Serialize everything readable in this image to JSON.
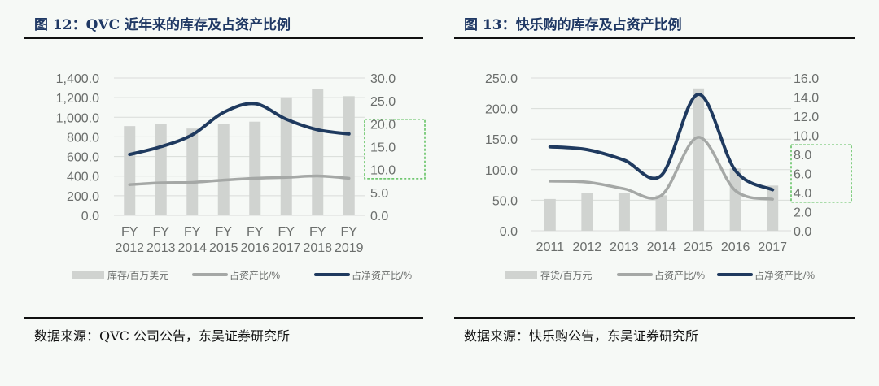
{
  "left": {
    "title": "图 12：QVC 近年来的库存及占资产比例",
    "source": "数据来源：QVC 公司公告，东吴证券研究所"
  },
  "right": {
    "title": "图 13：快乐购的库存及占资产比例",
    "source": "数据来源：快乐购公告，东吴证券研究所"
  },
  "colors": {
    "bar": "#d0d3d0",
    "asset_line": "#a5a8a6",
    "net_asset_line": "#1f3a5f",
    "title": "#1f3864",
    "highlight_box": "#5cc05c"
  },
  "chart_data": [
    {
      "type": "bar+line",
      "categories": [
        "FY\n2012",
        "FY\n2013",
        "FY\n2014",
        "FY\n2015",
        "FY\n2016",
        "FY\n2017",
        "FY\n2018",
        "FY\n2019"
      ],
      "ylim": [
        0,
        1400
      ],
      "y_ticks": [
        "0.0",
        "200.0",
        "400.0",
        "600.0",
        "800.0",
        "1,000.0",
        "1,200.0",
        "1,400.0"
      ],
      "y2lim": [
        0,
        30
      ],
      "y2_ticks": [
        "0.0",
        "5.0",
        "10.0",
        "15.0",
        "20.0",
        "25.0",
        "30.0"
      ],
      "grid": true,
      "legend": "bottom",
      "highlight_y2_range": [
        8,
        21
      ],
      "series": [
        {
          "name": "库存/百万美元",
          "type": "bar",
          "axis": "left",
          "values": [
            910,
            935,
            885,
            935,
            955,
            1205,
            1285,
            1215
          ]
        },
        {
          "name": "占资产比/%",
          "type": "line",
          "axis": "right",
          "values": [
            6.7,
            7.1,
            7.2,
            7.7,
            8.1,
            8.3,
            8.6,
            8.1
          ]
        },
        {
          "name": "占净资产比/%",
          "type": "line",
          "axis": "right",
          "values": [
            13.3,
            15.0,
            17.6,
            22.5,
            24.4,
            21.0,
            18.7,
            17.8
          ]
        }
      ]
    },
    {
      "type": "bar+line",
      "categories": [
        "2011",
        "2012",
        "2013",
        "2014",
        "2015",
        "2016",
        "2017"
      ],
      "ylim": [
        0,
        250
      ],
      "y_ticks": [
        "0.0",
        "50.0",
        "100.0",
        "150.0",
        "200.0",
        "250.0"
      ],
      "y2lim": [
        0,
        16
      ],
      "y2_ticks": [
        "0.0",
        "2.0",
        "4.0",
        "6.0",
        "8.0",
        "10.0",
        "12.0",
        "14.0",
        "16.0"
      ],
      "grid": true,
      "legend": "bottom",
      "highlight_y2_range": [
        3,
        9
      ],
      "series": [
        {
          "name": "存货/百万元",
          "type": "bar",
          "axis": "left",
          "values": [
            52,
            62,
            62,
            58,
            233,
            102,
            74
          ]
        },
        {
          "name": "占资产比/%",
          "type": "line",
          "axis": "right",
          "values": [
            5.2,
            5.1,
            4.4,
            3.7,
            9.8,
            4.2,
            3.3
          ]
        },
        {
          "name": "占净资产比/%",
          "type": "line",
          "axis": "right",
          "values": [
            8.8,
            8.5,
            7.4,
            5.8,
            14.3,
            6.3,
            4.3
          ]
        }
      ]
    }
  ]
}
